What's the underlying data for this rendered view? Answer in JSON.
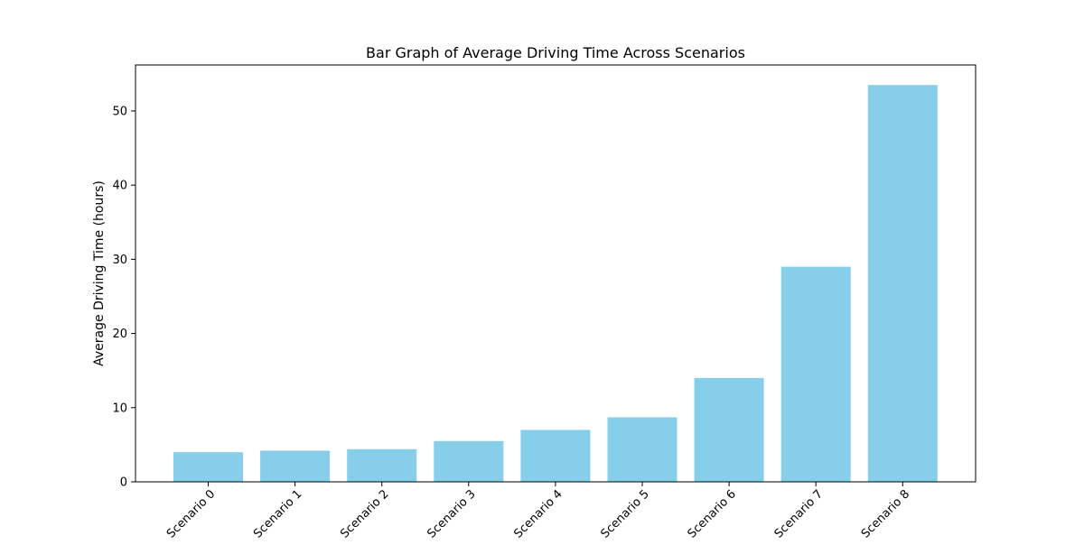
{
  "chart_data": {
    "type": "bar",
    "title": "Bar Graph of Average Driving Time Across Scenarios",
    "xlabel": "",
    "ylabel": "Average Driving Time (hours)",
    "categories": [
      "Scenario 0",
      "Scenario 1",
      "Scenario 2",
      "Scenario 3",
      "Scenario 4",
      "Scenario 5",
      "Scenario 6",
      "Scenario 7",
      "Scenario 8"
    ],
    "values": [
      4.0,
      4.2,
      4.4,
      5.5,
      7.0,
      8.7,
      14.0,
      29.0,
      53.5
    ],
    "ylim": [
      0,
      56.2
    ],
    "yticks": [
      0,
      10,
      20,
      30,
      40,
      50
    ],
    "bar_color": "#87ceeb",
    "grid": false,
    "legend": "none",
    "xtick_rotation": "45 degrees"
  }
}
